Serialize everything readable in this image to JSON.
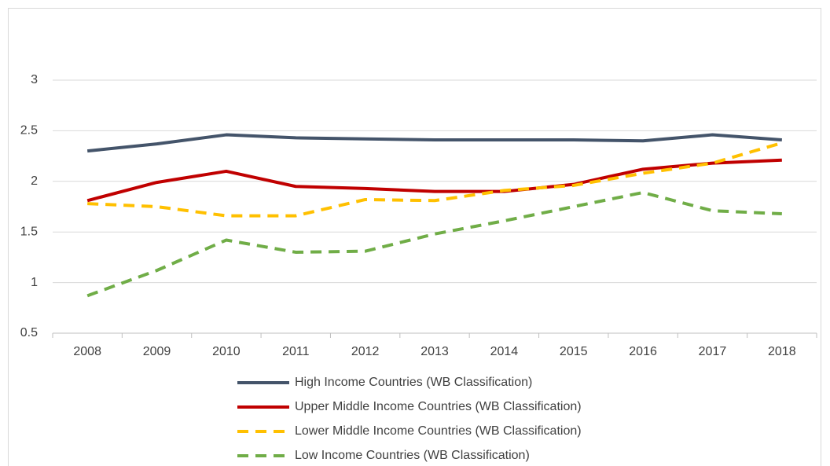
{
  "chart_data": {
    "type": "line",
    "categories": [
      "2008",
      "2009",
      "2010",
      "2011",
      "2012",
      "2013",
      "2014",
      "2015",
      "2016",
      "2017",
      "2018"
    ],
    "series": [
      {
        "name": "High Income Countries (WB Classification)",
        "color": "#44546a",
        "dashed": false,
        "values": [
          2.3,
          2.37,
          2.46,
          2.43,
          2.42,
          2.41,
          2.41,
          2.41,
          2.4,
          2.46,
          2.41
        ]
      },
      {
        "name": "Upper Middle Income Countries (WB Classification)",
        "color": "#c00000",
        "dashed": false,
        "values": [
          1.81,
          1.99,
          2.1,
          1.95,
          1.93,
          1.9,
          1.9,
          1.97,
          2.12,
          2.18,
          2.21
        ]
      },
      {
        "name": "Lower Middle Income Countries (WB Classification)",
        "color": "#ffc000",
        "dashed": true,
        "values": [
          1.78,
          1.75,
          1.66,
          1.66,
          1.82,
          1.81,
          1.91,
          1.96,
          2.08,
          2.18,
          2.38
        ]
      },
      {
        "name": "Low Income Countries (WB Classification)",
        "color": "#70ad47",
        "dashed": true,
        "values": [
          0.87,
          1.12,
          1.42,
          1.3,
          1.31,
          1.48,
          1.61,
          1.75,
          1.89,
          1.71,
          1.68
        ]
      }
    ],
    "ylim": [
      0.5,
      3
    ],
    "yticks": [
      0.5,
      1,
      1.5,
      2,
      2.5,
      3
    ],
    "grid": true,
    "legend": "bottom"
  }
}
